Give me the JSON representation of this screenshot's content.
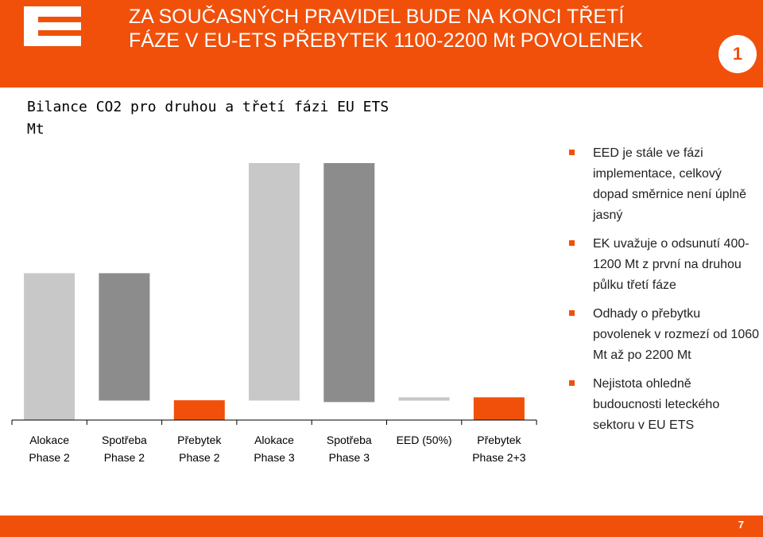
{
  "header": {
    "title_line1": "ZA SOUČASNÝCH PRAVIDEL BUDE NA KONCI TŘETÍ",
    "title_line2": "FÁZE V EU-ETS PŘEBYTEK 1100-2200 Mt POVOLENEK",
    "badge": "1",
    "accent_color": "#F0500A"
  },
  "chart_data": {
    "type": "bar",
    "title": "Bilance CO2 pro druhou a třetí fázi EU ETS",
    "unit": "Mt",
    "categories": [
      [
        "Alokace",
        "Phase 2"
      ],
      [
        "Spotřeba",
        "Phase 2"
      ],
      [
        "Přebytek",
        "Phase 2"
      ],
      [
        "Alokace",
        "Phase 3"
      ],
      [
        "Spotřeba",
        "Phase 3"
      ],
      [
        "EED (50%)"
      ],
      [
        "Přebytek",
        "Phase 2+3"
      ]
    ],
    "bars": [
      {
        "bottom": 0,
        "top": 2000,
        "color": "#C8C8C8"
      },
      {
        "bottom": 265,
        "top": 2000,
        "color": "#8C8C8C"
      },
      {
        "bottom": 0,
        "top": 270,
        "color": "#F0500A"
      },
      {
        "bottom": 265,
        "top": 3500,
        "color": "#C8C8C8"
      },
      {
        "bottom": 245,
        "top": 3500,
        "color": "#8C8C8C"
      },
      {
        "bottom": 265,
        "top": 310,
        "color": "#C8C8C8"
      },
      {
        "bottom": 0,
        "top": 310,
        "color": "#F0500A"
      }
    ],
    "ylim": [
      0,
      3500
    ],
    "grid": false,
    "legend": "none"
  },
  "bullets": [
    "EED je stále ve fázi implementace, celkový dopad směrnice není úplně jasný",
    "EK uvažuje o odsunutí 400-1200 Mt z první na druhou půlku třetí fáze",
    "Odhady o přebytku povolenek v rozmezí od 1060 Mt až po 2200 Mt",
    "Nejistota ohledně budoucnosti leteckého sektoru v EU ETS"
  ],
  "footer": {
    "page_number": "7"
  }
}
